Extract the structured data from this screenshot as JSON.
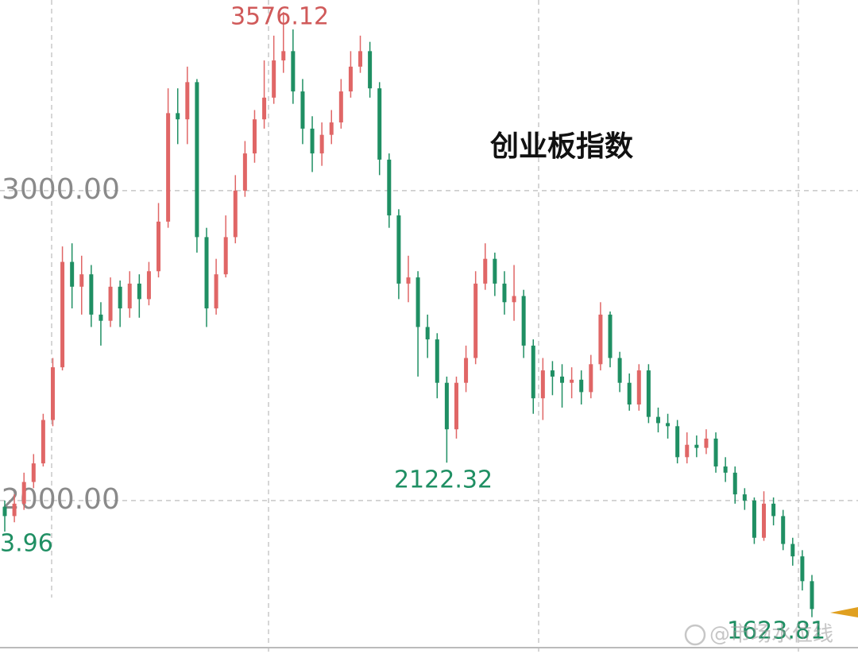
{
  "chart_data": {
    "type": "candlestick",
    "title": "创业板指数",
    "ylim": [
      1505,
      3615
    ],
    "yticks": [
      {
        "value": 2000,
        "label": "2000.00"
      },
      {
        "value": 3000,
        "label": "3000.00"
      }
    ],
    "grid": true,
    "up_color": "#e06666",
    "down_color": "#1f8f63",
    "open": [
      1980,
      1950,
      1990,
      2060,
      2120,
      2260,
      2430,
      2770,
      2690,
      2730,
      2600,
      2580,
      2690,
      2620,
      2700,
      2650,
      2740,
      2900,
      3250,
      3230,
      3350,
      2850,
      2620,
      2730,
      2850,
      3000,
      3120,
      3230,
      3300,
      3420,
      3450,
      3320,
      3200,
      3120,
      3180,
      3220,
      3320,
      3400,
      3450,
      3330,
      3100,
      2920,
      2700,
      2720,
      2560,
      2520,
      2380,
      2230,
      2380,
      2460,
      2700,
      2780,
      2700,
      2640,
      2660,
      2500,
      2330,
      2420,
      2400,
      2380,
      2390,
      2350,
      2440,
      2600,
      2460,
      2380,
      2310,
      2420,
      2270,
      2250,
      2240,
      2140,
      2180,
      2170,
      2200,
      2110,
      2090,
      2020,
      2000,
      1880,
      1990,
      1950,
      1860,
      1820,
      1740
    ],
    "high": [
      2000,
      2020,
      2090,
      2150,
      2280,
      2460,
      2820,
      2830,
      2790,
      2760,
      2640,
      2720,
      2710,
      2740,
      2730,
      2770,
      2960,
      3330,
      3330,
      3400,
      3360,
      2880,
      2780,
      2920,
      3050,
      3160,
      3260,
      3420,
      3500,
      3576.12,
      3520,
      3360,
      3240,
      3220,
      3260,
      3360,
      3450,
      3500,
      3480,
      3350,
      3120,
      2940,
      2790,
      2740,
      2600,
      2540,
      2400,
      2400,
      2500,
      2740,
      2830,
      2800,
      2740,
      2760,
      2680,
      2520,
      2460,
      2450,
      2440,
      2430,
      2420,
      2470,
      2640,
      2610,
      2480,
      2410,
      2440,
      2440,
      2300,
      2280,
      2260,
      2220,
      2210,
      2230,
      2220,
      2140,
      2110,
      2040,
      2010,
      2030,
      2010,
      1970,
      1880,
      1840,
      1760
    ],
    "low": [
      1900,
      1930,
      1970,
      2040,
      2110,
      2240,
      2420,
      2620,
      2600,
      2560,
      2500,
      2560,
      2560,
      2590,
      2590,
      2630,
      2720,
      2880,
      3150,
      3150,
      2800,
      2560,
      2600,
      2720,
      2830,
      2980,
      3090,
      3200,
      3280,
      3380,
      3280,
      3150,
      3060,
      3080,
      3150,
      3200,
      3300,
      3380,
      3300,
      3050,
      2880,
      2650,
      2640,
      2400,
      2460,
      2330,
      2122.32,
      2200,
      2350,
      2440,
      2680,
      2660,
      2600,
      2580,
      2460,
      2280,
      2260,
      2340,
      2300,
      2330,
      2310,
      2330,
      2420,
      2430,
      2350,
      2290,
      2290,
      2250,
      2220,
      2200,
      2120,
      2120,
      2140,
      2150,
      2090,
      2060,
      1990,
      1970,
      1860,
      1870,
      1920,
      1840,
      1790,
      1710,
      1623.81
    ],
    "close": [
      1950,
      1990,
      2060,
      2120,
      2260,
      2430,
      2770,
      2690,
      2730,
      2600,
      2580,
      2690,
      2620,
      2700,
      2650,
      2740,
      2900,
      3250,
      3230,
      3350,
      2850,
      2620,
      2730,
      2850,
      3000,
      3120,
      3230,
      3300,
      3420,
      3450,
      3320,
      3200,
      3120,
      3180,
      3220,
      3320,
      3400,
      3450,
      3330,
      3100,
      2920,
      2700,
      2720,
      2560,
      2520,
      2380,
      2230,
      2380,
      2460,
      2700,
      2780,
      2700,
      2640,
      2660,
      2500,
      2330,
      2420,
      2400,
      2380,
      2390,
      2350,
      2440,
      2600,
      2460,
      2380,
      2310,
      2420,
      2270,
      2250,
      2240,
      2140,
      2180,
      2170,
      2200,
      2110,
      2090,
      2020,
      2000,
      1880,
      1990,
      1950,
      1860,
      1820,
      1740,
      1650
    ],
    "annotations": [
      {
        "text": "3576.12",
        "color": "#d05a5a"
      },
      {
        "text": "2122.32",
        "color": "#1f8f63"
      },
      {
        "text": "3.96",
        "color": "#1f8f63"
      },
      {
        "text": "1623.81",
        "color": "#1f8f63"
      }
    ],
    "watermark": "@市场水位线"
  }
}
